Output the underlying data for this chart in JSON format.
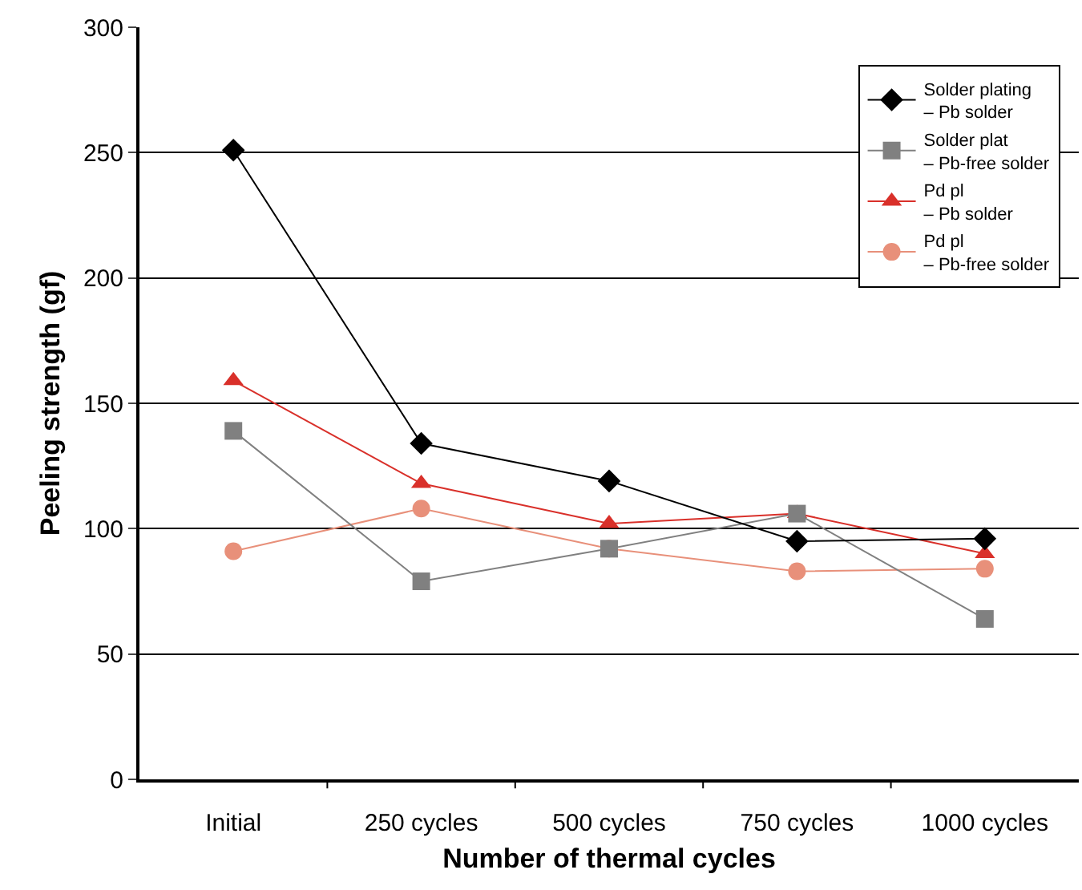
{
  "chart_data": {
    "type": "line",
    "xlabel": "Number of thermal cycles",
    "ylabel": "Peeling strength (gf)",
    "categories": [
      "Initial",
      "250 cycles",
      "500 cycles",
      "750 cycles",
      "1000 cycles"
    ],
    "ylim": [
      0,
      300
    ],
    "yticks": [
      0,
      50,
      100,
      150,
      200,
      250,
      300
    ],
    "grid": "y",
    "legend": "top right",
    "line_style": "solid",
    "series": [
      {
        "name": "Solder plating\n– Pb solder",
        "color": "#000000",
        "marker": "diamond",
        "values": [
          251,
          134,
          119,
          95,
          96
        ]
      },
      {
        "name": "Solder plat\n– Pb-free solder",
        "color": "#808080",
        "marker": "square",
        "values": [
          139,
          79,
          92,
          106,
          64
        ]
      },
      {
        "name": "Pd pl\n– Pb solder",
        "color": "#d9302a",
        "marker": "triangle",
        "values": [
          159,
          118,
          102,
          106,
          90
        ]
      },
      {
        "name": "Pd pl\n– Pb-free solder",
        "color": "#e8907a",
        "marker": "circle",
        "values": [
          91,
          108,
          92,
          83,
          84
        ]
      }
    ]
  }
}
